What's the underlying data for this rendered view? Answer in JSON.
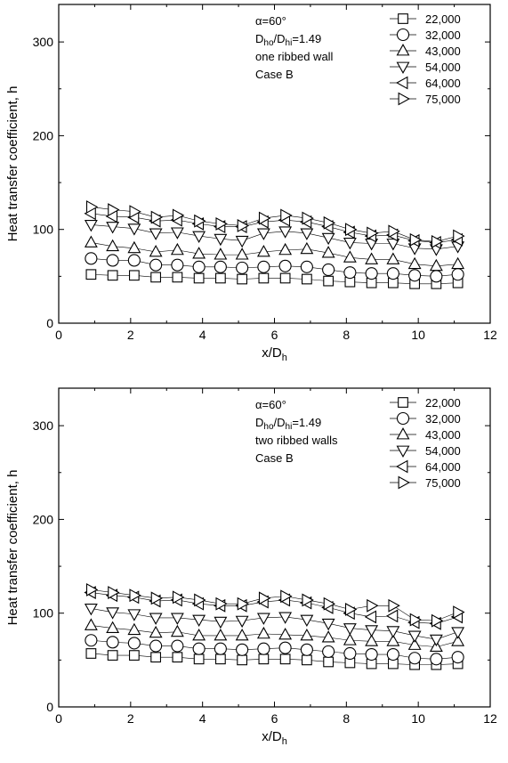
{
  "chart_data": [
    {
      "type": "scatter",
      "xlabel": "x/D",
      "xlabel_sub": "h",
      "ylabel": "Heat transfer coefficient, h",
      "xlim": [
        0,
        12
      ],
      "ylim": [
        0,
        340
      ],
      "xticks": [
        0,
        2,
        4,
        6,
        8,
        10,
        12
      ],
      "yticks": [
        0,
        100,
        200,
        300
      ],
      "grid": false,
      "legend_position": "top-right",
      "annotations": {
        "line1": "α=60°",
        "line2_parts": [
          "D",
          "ho",
          "/D",
          "hi",
          "=1.49"
        ],
        "line3": "one ribbed wall",
        "line4": "Case B"
      },
      "x": [
        0.9,
        1.5,
        2.1,
        2.7,
        3.3,
        3.9,
        4.5,
        5.1,
        5.7,
        6.3,
        6.9,
        7.5,
        8.1,
        8.7,
        9.3,
        9.9,
        10.5,
        11.1
      ],
      "series": [
        {
          "name": "22,000",
          "marker": "square",
          "values": [
            52,
            51,
            51,
            49,
            49,
            48,
            48,
            47,
            48,
            48,
            47,
            45,
            44,
            43,
            43,
            42,
            42,
            43
          ]
        },
        {
          "name": "32,000",
          "marker": "circle",
          "values": [
            69,
            67,
            67,
            62,
            62,
            60,
            60,
            59,
            60,
            61,
            60,
            57,
            54,
            53,
            53,
            51,
            50,
            52
          ]
        },
        {
          "name": "43,000",
          "marker": "triangle-up",
          "values": [
            86,
            82,
            80,
            76,
            78,
            74,
            73,
            73,
            76,
            78,
            79,
            75,
            70,
            68,
            68,
            63,
            61,
            63
          ]
        },
        {
          "name": "54,000",
          "marker": "triangle-down",
          "values": [
            105,
            103,
            101,
            96,
            97,
            93,
            90,
            88,
            96,
            98,
            96,
            91,
            86,
            85,
            85,
            80,
            79,
            82
          ]
        },
        {
          "name": "64,000",
          "marker": "triangle-left",
          "values": [
            117,
            114,
            113,
            109,
            110,
            106,
            103,
            103,
            108,
            110,
            108,
            103,
            97,
            93,
            94,
            88,
            86,
            89
          ]
        },
        {
          "name": "75,000",
          "marker": "triangle-right",
          "values": [
            124,
            121,
            119,
            113,
            115,
            109,
            106,
            104,
            112,
            115,
            112,
            107,
            100,
            96,
            98,
            89,
            87,
            93
          ]
        }
      ]
    },
    {
      "type": "scatter",
      "xlabel": "x/D",
      "xlabel_sub": "h",
      "ylabel": "Heat transfer coefficient, h",
      "xlim": [
        0,
        12
      ],
      "ylim": [
        0,
        340
      ],
      "xticks": [
        0,
        2,
        4,
        6,
        8,
        10,
        12
      ],
      "yticks": [
        0,
        100,
        200,
        300
      ],
      "grid": false,
      "legend_position": "top-right",
      "annotations": {
        "line1": "α=60°",
        "line2_parts": [
          "D",
          "ho",
          "/D",
          "hi",
          "=1.49"
        ],
        "line3": "two ribbed walls",
        "line4": "Case B"
      },
      "x": [
        0.9,
        1.5,
        2.1,
        2.7,
        3.3,
        3.9,
        4.5,
        5.1,
        5.7,
        6.3,
        6.9,
        7.5,
        8.1,
        8.7,
        9.3,
        9.9,
        10.5,
        11.1
      ],
      "series": [
        {
          "name": "22,000",
          "marker": "square",
          "values": [
            57,
            55,
            55,
            53,
            53,
            51,
            51,
            50,
            51,
            51,
            50,
            48,
            47,
            46,
            46,
            45,
            45,
            46
          ]
        },
        {
          "name": "32,000",
          "marker": "circle",
          "values": [
            71,
            69,
            68,
            65,
            65,
            62,
            62,
            61,
            62,
            63,
            61,
            59,
            57,
            56,
            56,
            52,
            51,
            53
          ]
        },
        {
          "name": "43,000",
          "marker": "triangle-up",
          "values": [
            87,
            84,
            82,
            79,
            80,
            76,
            76,
            76,
            78,
            77,
            76,
            74,
            71,
            70,
            70,
            66,
            64,
            70
          ]
        },
        {
          "name": "54,000",
          "marker": "triangle-down",
          "values": [
            105,
            101,
            99,
            95,
            95,
            93,
            91,
            92,
            95,
            96,
            93,
            89,
            84,
            82,
            81,
            76,
            72,
            80
          ]
        },
        {
          "name": "64,000",
          "marker": "triangle-left",
          "values": [
            122,
            119,
            117,
            113,
            114,
            110,
            108,
            108,
            112,
            114,
            111,
            106,
            100,
            96,
            97,
            90,
            89,
            96
          ]
        },
        {
          "name": "75,000",
          "marker": "triangle-right",
          "values": [
            125,
            122,
            119,
            116,
            117,
            114,
            110,
            110,
            116,
            118,
            114,
            110,
            104,
            108,
            108,
            93,
            92,
            101
          ]
        }
      ]
    }
  ]
}
